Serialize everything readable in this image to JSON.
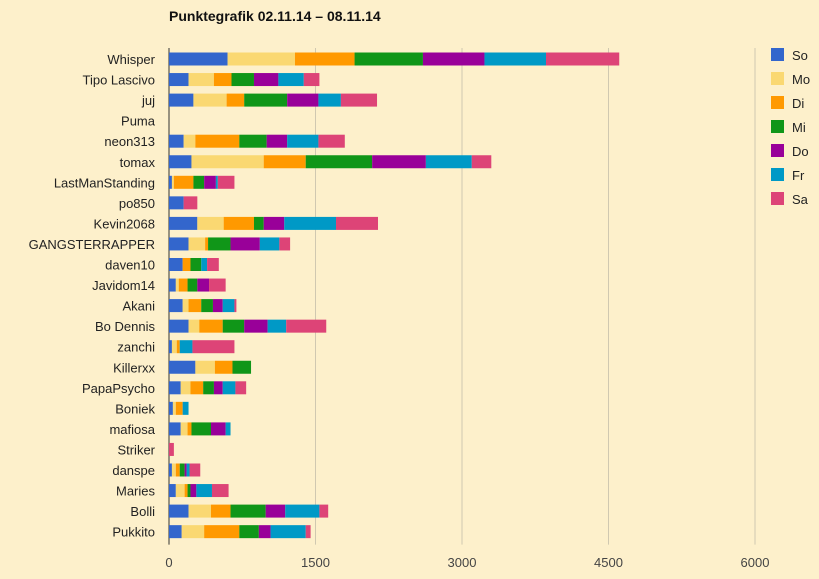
{
  "chart_data": {
    "type": "bar",
    "orientation": "horizontal",
    "stacked": true,
    "title": "Punktegrafik 02.11.14 – 08.11.14",
    "xlabel": "",
    "ylabel": "",
    "xlim": [
      0,
      6000
    ],
    "xticks": [
      0,
      1500,
      3000,
      4500,
      6000
    ],
    "grid": true,
    "legend_position": "right",
    "categories": [
      "Whisper",
      "Tipo Lascivo",
      "juj",
      "Puma",
      "neon313",
      "tomax",
      "LastManStanding",
      "po850",
      "Kevin2068",
      "GANGSTERRAPPER",
      "daven10",
      "Javidom14",
      "Akani",
      "Bo Dennis",
      "zanchi",
      "Killerxx",
      "PapaPsycho",
      "Boniek",
      "mafiosa",
      "Striker",
      "danspe",
      "Maries",
      "Bolli",
      "Pukkito"
    ],
    "series": [
      {
        "name": "So",
        "color": "#3366cc",
        "values": [
          600,
          200,
          250,
          0,
          150,
          230,
          30,
          150,
          290,
          200,
          140,
          70,
          140,
          200,
          30,
          270,
          120,
          40,
          120,
          0,
          30,
          70,
          200,
          130
        ]
      },
      {
        "name": "Mo",
        "color": "#fad872",
        "values": [
          690,
          260,
          340,
          0,
          120,
          740,
          20,
          0,
          270,
          170,
          0,
          30,
          60,
          110,
          50,
          200,
          100,
          30,
          70,
          0,
          40,
          90,
          230,
          230
        ]
      },
      {
        "name": "Di",
        "color": "#ff9900",
        "values": [
          610,
          180,
          180,
          0,
          450,
          430,
          200,
          0,
          310,
          30,
          80,
          90,
          130,
          240,
          30,
          180,
          130,
          70,
          40,
          0,
          40,
          30,
          200,
          360
        ]
      },
      {
        "name": "Mi",
        "color": "#109618",
        "values": [
          700,
          230,
          440,
          0,
          280,
          680,
          110,
          0,
          100,
          230,
          110,
          100,
          120,
          220,
          0,
          190,
          110,
          0,
          200,
          0,
          50,
          30,
          360,
          200
        ]
      },
      {
        "name": "Do",
        "color": "#990099",
        "values": [
          630,
          250,
          320,
          0,
          210,
          550,
          120,
          0,
          210,
          300,
          0,
          120,
          100,
          240,
          0,
          0,
          90,
          0,
          150,
          0,
          20,
          60,
          200,
          120
        ]
      },
      {
        "name": "Fr",
        "color": "#0099c6",
        "values": [
          630,
          260,
          230,
          0,
          320,
          470,
          20,
          0,
          530,
          200,
          60,
          0,
          120,
          190,
          130,
          0,
          130,
          60,
          50,
          0,
          30,
          160,
          350,
          360
        ]
      },
      {
        "name": "Sa",
        "color": "#dd4477",
        "values": [
          750,
          160,
          370,
          0,
          270,
          200,
          170,
          140,
          430,
          110,
          120,
          170,
          20,
          410,
          430,
          0,
          110,
          0,
          0,
          50,
          110,
          170,
          90,
          50
        ]
      }
    ]
  }
}
